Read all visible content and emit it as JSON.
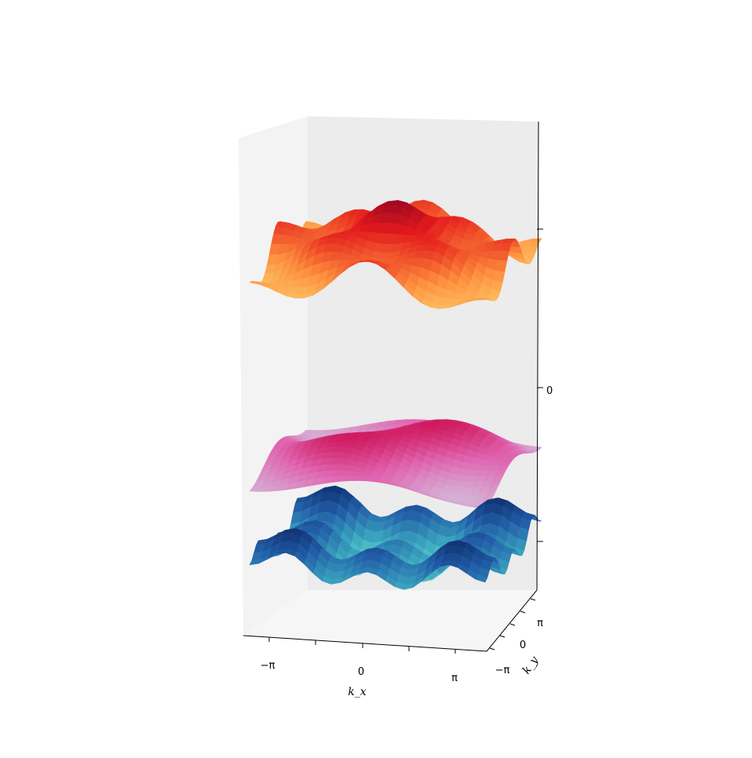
{
  "chart_data": {
    "type": "surface3d",
    "title": "",
    "xlabel": "k_x",
    "ylabel": "k_y",
    "zlabel": "",
    "x_ticks": [
      "−π",
      "0",
      "π"
    ],
    "y_ticks": [
      "−π",
      "0",
      "π"
    ],
    "z_ticks": [
      "0"
    ],
    "xlim": [
      -3.14159,
      3.14159
    ],
    "ylim": [
      -3.14159,
      3.14159
    ],
    "surfaces": [
      {
        "band": "upper",
        "colormap": "YlOrRd",
        "colors": [
          "#ffffcc",
          "#fed976",
          "#fd8d3c",
          "#e31a1c",
          "#800026"
        ]
      },
      {
        "band": "middle",
        "colormap": "PuRd",
        "colors": [
          "#f7f4f9",
          "#d4b9da",
          "#df65b0",
          "#ce1256",
          "#67001f"
        ]
      },
      {
        "band": "lower",
        "colormap": "YlGnBu",
        "colors": [
          "#ffffd9",
          "#c7e9b4",
          "#41b6c4",
          "#225ea8",
          "#081d58"
        ]
      }
    ]
  }
}
